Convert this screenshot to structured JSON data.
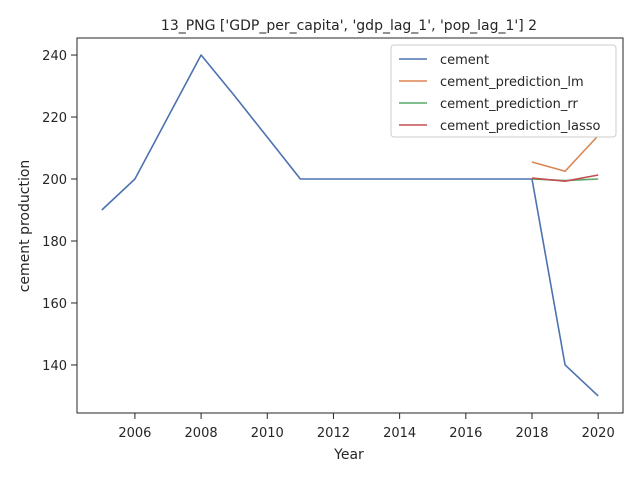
{
  "chart_data": {
    "type": "line",
    "title": "13_PNG ['GDP_per_capita', 'gdp_lag_1', 'pop_lag_1'] 2",
    "xlabel": "Year",
    "ylabel": "cement production",
    "xlim": [
      2004.25,
      2020.75
    ],
    "ylim": [
      124.5,
      245.5
    ],
    "xticks": [
      2006,
      2008,
      2010,
      2012,
      2014,
      2016,
      2018,
      2020
    ],
    "yticks": [
      140,
      160,
      180,
      200,
      220,
      240
    ],
    "grid": false,
    "legend_position": "top-right",
    "series": [
      {
        "name": "cement",
        "color": "#4c72b0",
        "x": [
          2005,
          2006,
          2007,
          2008,
          2009,
          2010,
          2011,
          2012,
          2013,
          2014,
          2015,
          2016,
          2017,
          2018,
          2019,
          2020
        ],
        "y": [
          190,
          200,
          220,
          240,
          227,
          213.5,
          200,
          200,
          200,
          200,
          200,
          200,
          200,
          200,
          140,
          130
        ]
      },
      {
        "name": "cement_prediction_lm",
        "color": "#dd8452",
        "x": [
          2018,
          2019,
          2020
        ],
        "y": [
          205.5,
          202.5,
          214
        ]
      },
      {
        "name": "cement_prediction_rr",
        "color": "#55a868",
        "x": [
          2018,
          2019,
          2020
        ],
        "y": [
          200,
          199.5,
          200
        ]
      },
      {
        "name": "cement_prediction_lasso",
        "color": "#c44e52",
        "x": [
          2018,
          2019,
          2020
        ],
        "y": [
          200.3,
          199.3,
          201.3
        ]
      }
    ]
  }
}
